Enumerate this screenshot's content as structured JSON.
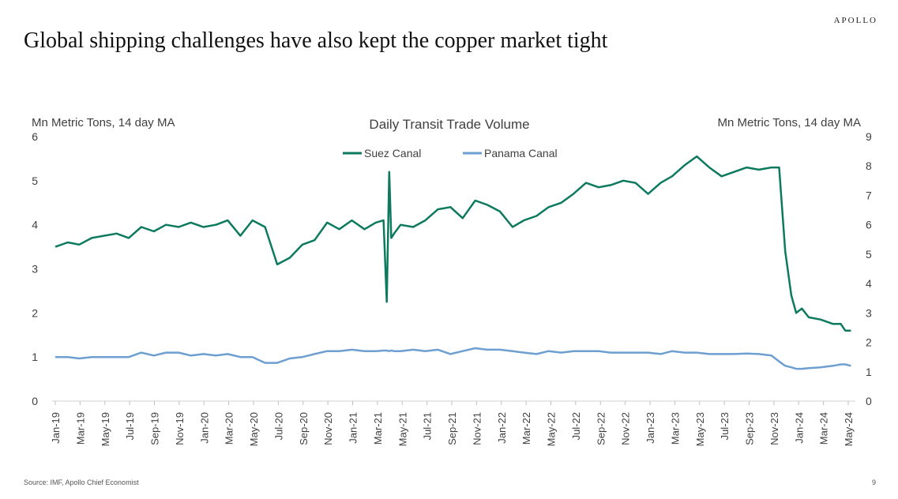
{
  "page": {
    "brand": "APOLLO",
    "headline": "Global shipping challenges have also kept the copper market tight",
    "source": "Source: IMF, Apollo Chief Economist",
    "page_number": "9"
  },
  "colors": {
    "suez": "#0d7a5f",
    "panama": "#6d9fd0"
  },
  "chart_data": {
    "type": "line",
    "title": "Daily Transit Trade Volume",
    "ylabel_left": "Mn Metric Tons, 14 day MA",
    "ylabel_right": "Mn Metric Tons, 14 day MA",
    "ylim_left": [
      0,
      6
    ],
    "ylim_right": [
      0,
      9
    ],
    "yticks_left": [
      "0",
      "1",
      "2",
      "3",
      "4",
      "5",
      "6"
    ],
    "yticks_right": [
      "0",
      "1",
      "2",
      "3",
      "4",
      "5",
      "6",
      "7",
      "8",
      "9"
    ],
    "legend_position": "top-center",
    "grid": false,
    "x_tick_labels": [
      "Jan-19",
      "Mar-19",
      "May-19",
      "Jul-19",
      "Sep-19",
      "Nov-19",
      "Jan-20",
      "Mar-20",
      "May-20",
      "Jul-20",
      "Sep-20",
      "Nov-20",
      "Jan-21",
      "Mar-21",
      "May-21",
      "Jul-21",
      "Sep-21",
      "Nov-21",
      "Jan-22",
      "Mar-22",
      "May-22",
      "Jul-22",
      "Sep-22",
      "Nov-22",
      "Jan-23",
      "Mar-23",
      "May-23",
      "Jul-23",
      "Sep-23",
      "Nov-23",
      "Jan-24",
      "Mar-24",
      "May-24"
    ],
    "x_dates": [
      "2019-01-01",
      "2019-02-01",
      "2019-03-01",
      "2019-04-01",
      "2019-05-01",
      "2019-06-01",
      "2019-07-01",
      "2019-08-01",
      "2019-09-01",
      "2019-10-01",
      "2019-11-01",
      "2019-12-01",
      "2020-01-01",
      "2020-02-01",
      "2020-03-01",
      "2020-04-01",
      "2020-05-01",
      "2020-06-01",
      "2020-07-01",
      "2020-08-01",
      "2020-09-01",
      "2020-10-01",
      "2020-11-01",
      "2020-12-01",
      "2021-01-01",
      "2021-02-01",
      "2021-03-01",
      "2021-03-20",
      "2021-03-28",
      "2021-04-03",
      "2021-04-08",
      "2021-04-15",
      "2021-05-01",
      "2021-06-01",
      "2021-07-01",
      "2021-08-01",
      "2021-09-01",
      "2021-10-01",
      "2021-11-01",
      "2021-12-01",
      "2022-01-01",
      "2022-02-01",
      "2022-03-01",
      "2022-04-01",
      "2022-05-01",
      "2022-06-01",
      "2022-07-01",
      "2022-08-01",
      "2022-09-01",
      "2022-10-01",
      "2022-11-01",
      "2022-12-01",
      "2023-01-01",
      "2023-02-01",
      "2023-03-01",
      "2023-04-01",
      "2023-05-01",
      "2023-06-01",
      "2023-07-01",
      "2023-08-01",
      "2023-09-01",
      "2023-10-01",
      "2023-11-01",
      "2023-11-20",
      "2023-12-05",
      "2023-12-20",
      "2024-01-01",
      "2024-01-15",
      "2024-02-01",
      "2024-03-01",
      "2024-04-01",
      "2024-04-20",
      "2024-05-01",
      "2024-05-15"
    ],
    "series": [
      {
        "name": "Suez Canal",
        "axis": "left",
        "values": [
          3.5,
          3.6,
          3.55,
          3.7,
          3.75,
          3.8,
          3.7,
          3.95,
          3.85,
          4.0,
          3.95,
          4.05,
          3.95,
          4.0,
          4.1,
          3.75,
          4.1,
          3.95,
          3.1,
          3.25,
          3.55,
          3.65,
          4.05,
          3.9,
          4.1,
          3.9,
          4.05,
          4.1,
          2.25,
          5.2,
          3.7,
          3.8,
          4.0,
          3.95,
          4.1,
          4.35,
          4.4,
          4.15,
          4.55,
          4.45,
          4.3,
          3.95,
          4.1,
          4.2,
          4.4,
          4.5,
          4.7,
          4.95,
          4.85,
          4.9,
          5.0,
          4.95,
          4.7,
          4.95,
          5.1,
          5.35,
          5.55,
          5.3,
          5.1,
          5.2,
          5.3,
          5.25,
          5.3,
          5.3,
          3.4,
          2.4,
          2.0,
          2.1,
          1.9,
          1.85,
          1.75,
          1.75,
          1.6,
          1.6
        ]
      },
      {
        "name": "Panama Canal",
        "axis": "right",
        "values": [
          1.5,
          1.5,
          1.45,
          1.5,
          1.5,
          1.5,
          1.5,
          1.65,
          1.55,
          1.65,
          1.65,
          1.55,
          1.6,
          1.55,
          1.6,
          1.5,
          1.5,
          1.3,
          1.3,
          1.45,
          1.5,
          1.6,
          1.7,
          1.7,
          1.75,
          1.7,
          1.7,
          1.72,
          1.72,
          1.7,
          1.72,
          1.7,
          1.7,
          1.75,
          1.7,
          1.75,
          1.6,
          1.7,
          1.8,
          1.75,
          1.75,
          1.7,
          1.65,
          1.6,
          1.7,
          1.65,
          1.7,
          1.7,
          1.7,
          1.65,
          1.65,
          1.65,
          1.65,
          1.6,
          1.7,
          1.65,
          1.65,
          1.6,
          1.6,
          1.6,
          1.62,
          1.6,
          1.55,
          1.35,
          1.2,
          1.15,
          1.1,
          1.1,
          1.12,
          1.15,
          1.2,
          1.25,
          1.25,
          1.2
        ]
      }
    ]
  }
}
